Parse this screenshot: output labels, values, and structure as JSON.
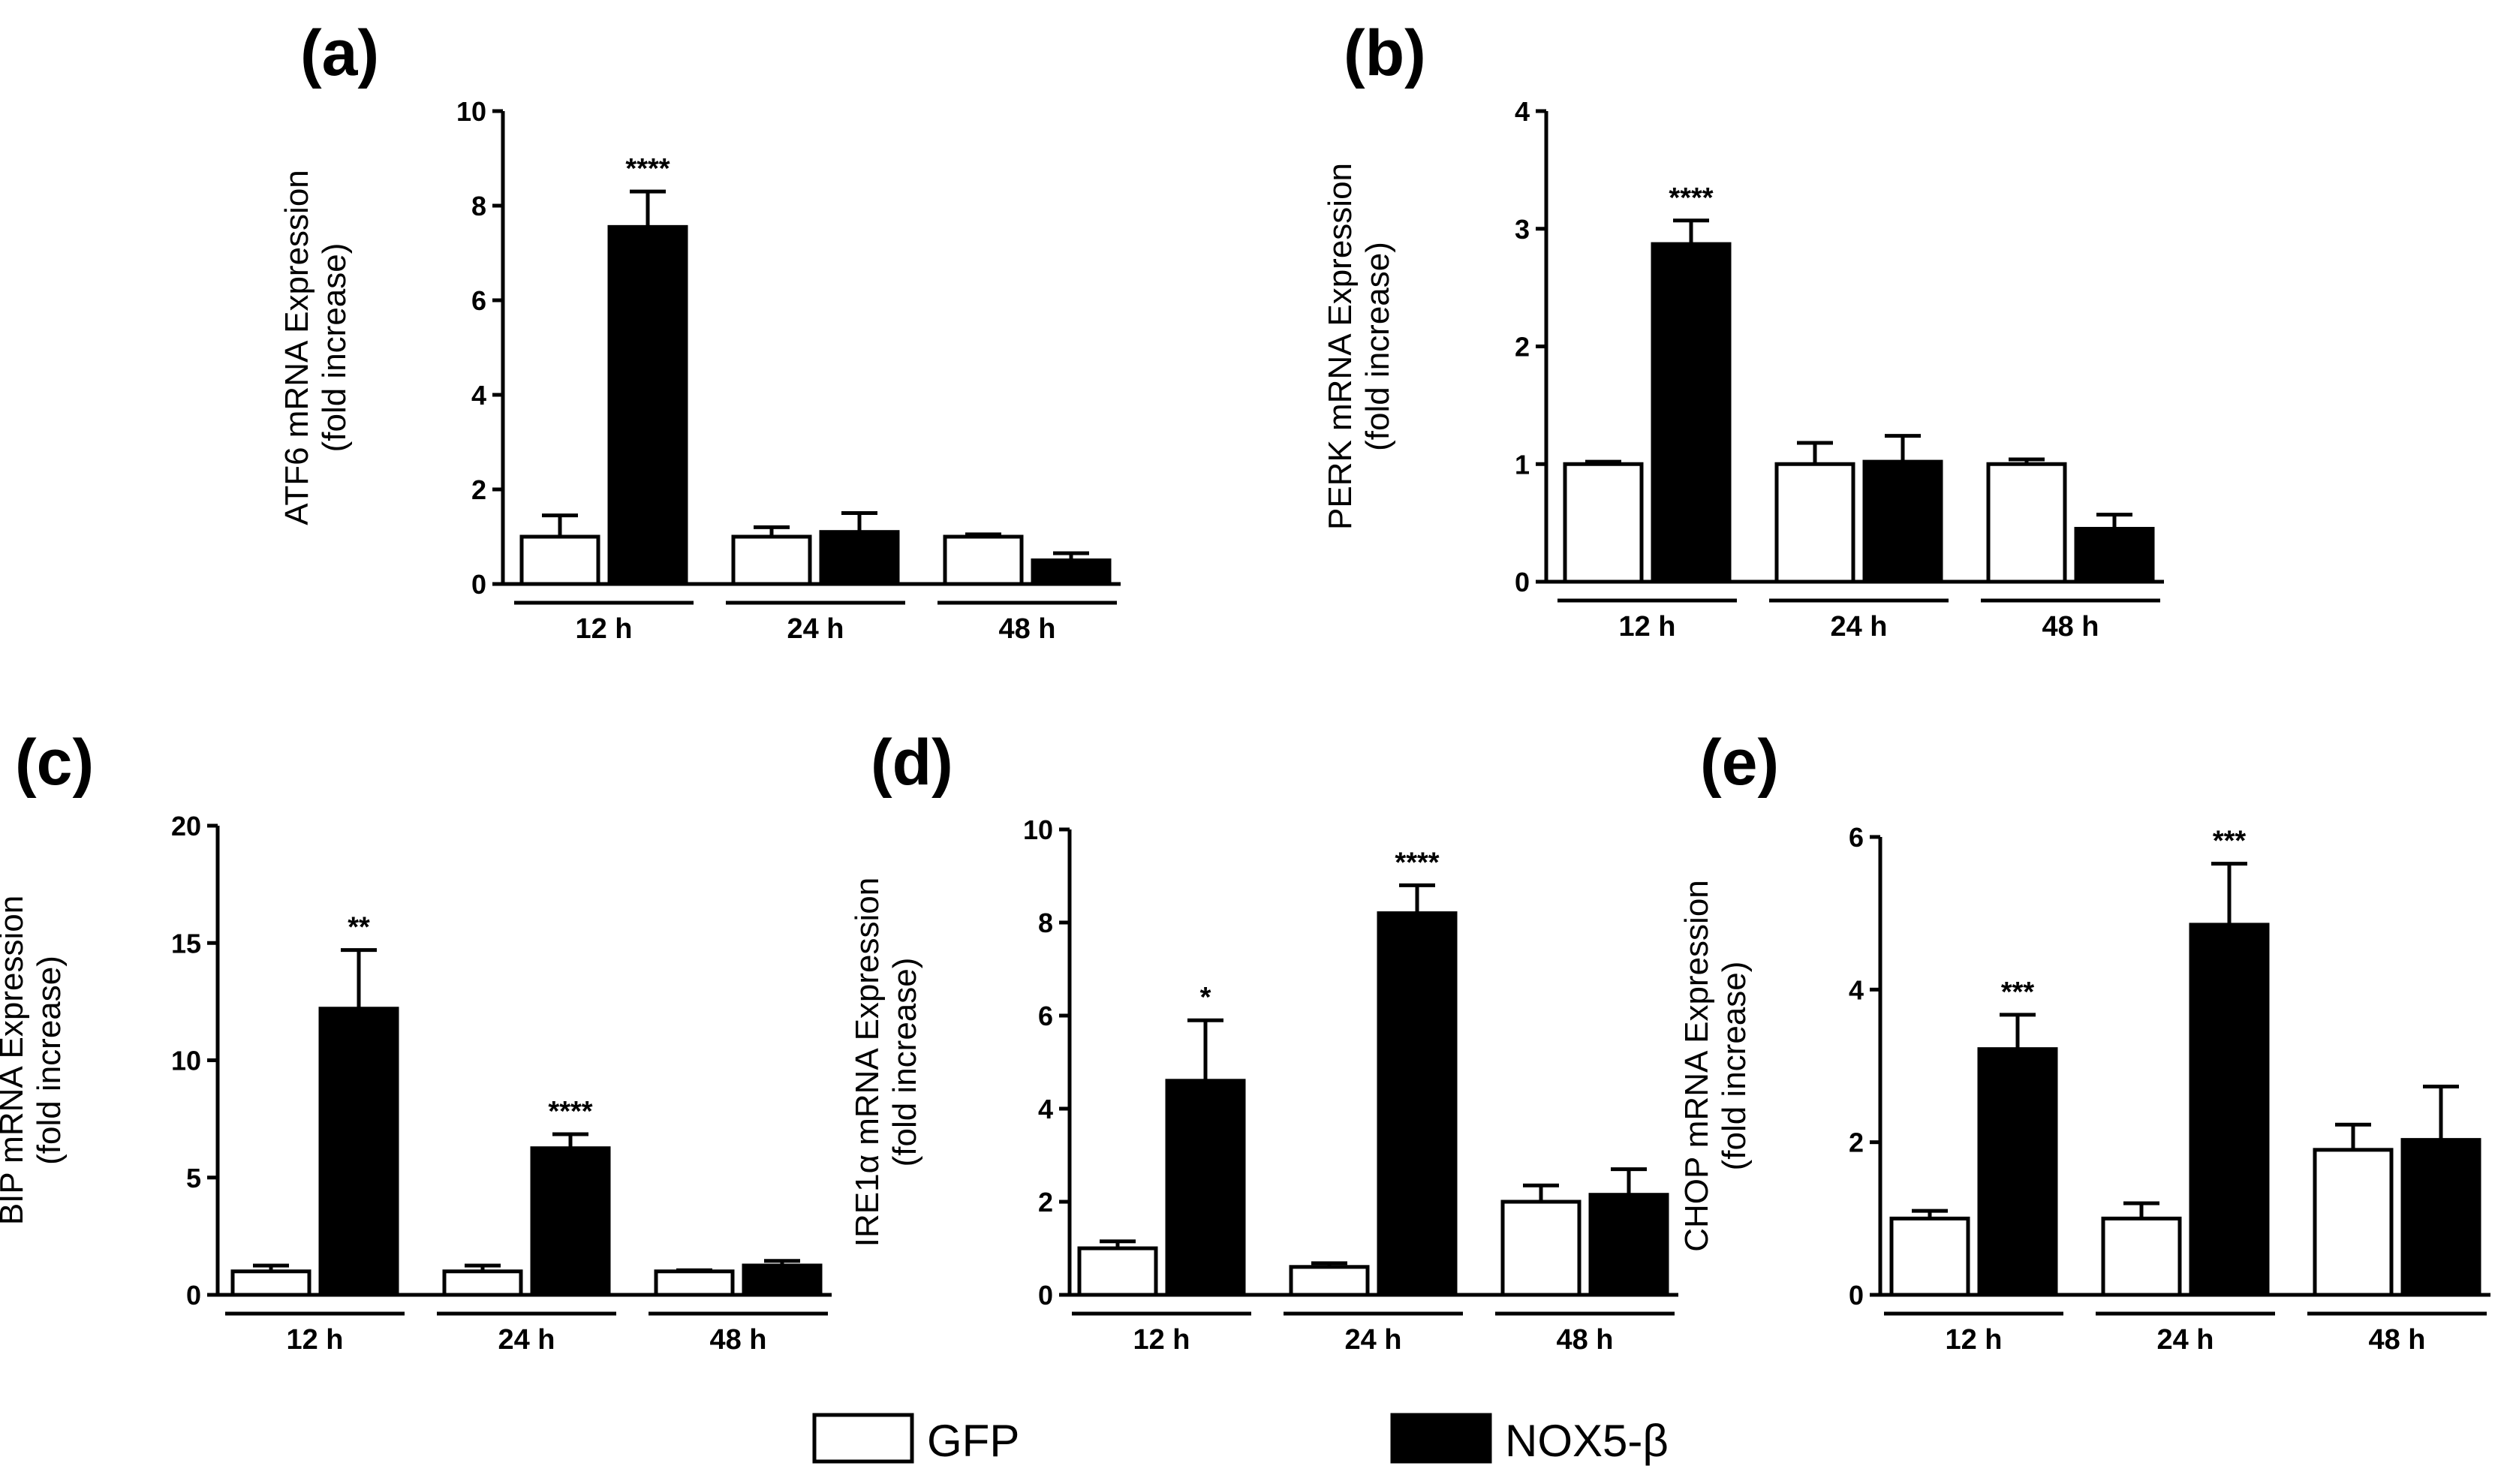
{
  "chart_data": [
    {
      "type": "bar",
      "panel": "(a)",
      "categories": [
        "12 h",
        "24 h",
        "48 h"
      ],
      "ylabel": [
        "ATF6 mRNA Expression",
        "(fold increase)"
      ],
      "ylim": [
        0,
        10
      ],
      "yticks": [
        "0",
        "2",
        "4",
        "6",
        "8",
        "10"
      ],
      "series": [
        {
          "name": "GFP",
          "values": [
            1.0,
            1.0,
            1.0
          ],
          "errors": [
            0.45,
            0.2,
            0.05
          ]
        },
        {
          "name": "NOX5-β",
          "values": [
            7.55,
            1.1,
            0.5
          ],
          "errors": [
            0.75,
            0.4,
            0.15
          ]
        }
      ],
      "annotations": [
        {
          "category": 0,
          "series": 1,
          "text": "****"
        }
      ]
    },
    {
      "type": "bar",
      "panel": "(b)",
      "categories": [
        "12 h",
        "24 h",
        "48 h"
      ],
      "ylabel": [
        "PERK mRNA Expression",
        "(fold increase)"
      ],
      "ylim": [
        0,
        4
      ],
      "yticks": [
        "0",
        "1",
        "2",
        "3",
        "4"
      ],
      "series": [
        {
          "name": "GFP",
          "values": [
            1.0,
            1.0,
            1.0
          ],
          "errors": [
            0.02,
            0.18,
            0.04
          ]
        },
        {
          "name": "NOX5-β",
          "values": [
            2.87,
            1.02,
            0.45
          ],
          "errors": [
            0.2,
            0.22,
            0.12
          ]
        }
      ],
      "annotations": [
        {
          "category": 0,
          "series": 1,
          "text": "****"
        }
      ]
    },
    {
      "type": "bar",
      "panel": "(c)",
      "categories": [
        "12 h",
        "24 h",
        "48 h"
      ],
      "ylabel": [
        "BIP mRNA Expression",
        "(fold increase)"
      ],
      "ylim": [
        0,
        20
      ],
      "yticks": [
        "0",
        "5",
        "10",
        "15",
        "20"
      ],
      "series": [
        {
          "name": "GFP",
          "values": [
            1.0,
            1.0,
            1.0
          ],
          "errors": [
            0.25,
            0.25,
            0.05
          ]
        },
        {
          "name": "NOX5-β",
          "values": [
            12.2,
            6.25,
            1.25
          ],
          "errors": [
            2.5,
            0.6,
            0.2
          ]
        }
      ],
      "annotations": [
        {
          "category": 0,
          "series": 1,
          "text": "**"
        },
        {
          "category": 1,
          "series": 1,
          "text": "****"
        }
      ]
    },
    {
      "type": "bar",
      "panel": "(d)",
      "categories": [
        "12 h",
        "24 h",
        "48 h"
      ],
      "ylabel": [
        "IRE1α mRNA Expression",
        "(fold increase)"
      ],
      "ylim": [
        0,
        10
      ],
      "yticks": [
        "0",
        "2",
        "4",
        "6",
        "8",
        "10"
      ],
      "series": [
        {
          "name": "GFP",
          "values": [
            1.0,
            0.6,
            2.0
          ],
          "errors": [
            0.15,
            0.08,
            0.35
          ]
        },
        {
          "name": "NOX5-β",
          "values": [
            4.6,
            8.2,
            2.15
          ],
          "errors": [
            1.3,
            0.6,
            0.55
          ]
        }
      ],
      "annotations": [
        {
          "category": 0,
          "series": 1,
          "text": "*"
        },
        {
          "category": 1,
          "series": 1,
          "text": "****"
        }
      ]
    },
    {
      "type": "bar",
      "panel": "(e)",
      "categories": [
        "12 h",
        "24 h",
        "48 h"
      ],
      "ylabel": [
        "CHOP mRNA Expression",
        "(fold increase)"
      ],
      "ylim": [
        0,
        6
      ],
      "yticks": [
        "0",
        "2",
        "4",
        "6"
      ],
      "series": [
        {
          "name": "GFP",
          "values": [
            1.0,
            1.0,
            1.9
          ],
          "errors": [
            0.1,
            0.2,
            0.33
          ]
        },
        {
          "name": "NOX5-β",
          "values": [
            3.22,
            4.85,
            2.03
          ],
          "errors": [
            0.45,
            0.8,
            0.7
          ]
        }
      ],
      "annotations": [
        {
          "category": 0,
          "series": 1,
          "text": "***"
        },
        {
          "category": 1,
          "series": 1,
          "text": "***"
        }
      ]
    }
  ],
  "legend": [
    {
      "label": "GFP",
      "fill": "#ffffff"
    },
    {
      "label": "NOX5-β",
      "fill": "#000000"
    }
  ],
  "colors": {
    "gfp": "#ffffff",
    "nox5": "#000000",
    "stroke": "#000000"
  }
}
